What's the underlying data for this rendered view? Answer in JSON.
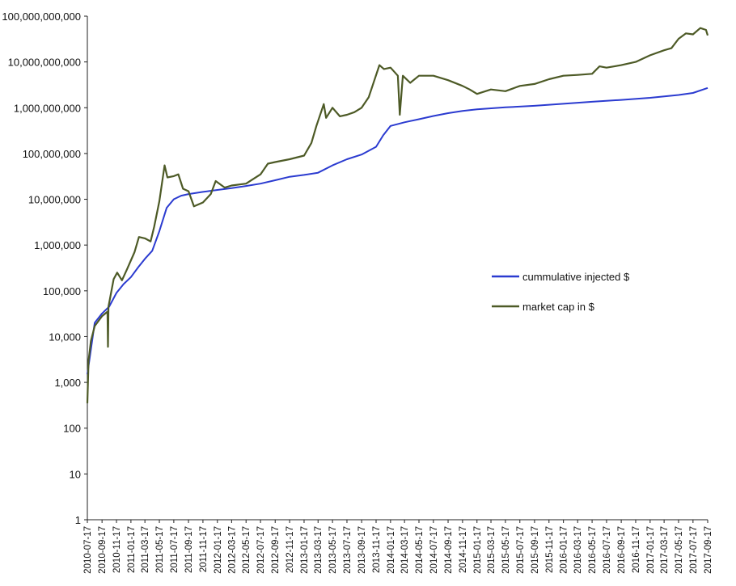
{
  "chart_data": {
    "type": "line",
    "title": "",
    "xlabel": "",
    "ylabel": "",
    "y_scale": "log",
    "ylim": [
      1,
      100000000000
    ],
    "xlim": [
      "2010-07-17",
      "2017-09-17"
    ],
    "grid": false,
    "legend_position": "right-middle",
    "y_tick_labels": [
      "1",
      "10",
      "100",
      "1,000",
      "10,000",
      "100,000",
      "1,000,000",
      "10,000,000",
      "100,000,000",
      "1,000,000,000",
      "10,000,000,000",
      "100,000,000,000"
    ],
    "x_tick_labels": [
      "2010-07-17",
      "2010-09-17",
      "2010-11-17",
      "2011-01-17",
      "2011-03-17",
      "2011-05-17",
      "2011-07-17",
      "2011-09-17",
      "2011-11-17",
      "2012-01-17",
      "2012-03-17",
      "2012-05-17",
      "2012-07-17",
      "2012-09-17",
      "2012-11-17",
      "2013-01-17",
      "2013-03-17",
      "2013-05-17",
      "2013-07-17",
      "2013-09-17",
      "2013-11-17",
      "2014-01-17",
      "2014-03-17",
      "2014-05-17",
      "2014-07-17",
      "2014-09-17",
      "2014-11-17",
      "2015-01-17",
      "2015-03-17",
      "2015-05-17",
      "2015-07-17",
      "2015-09-17",
      "2015-11-17",
      "2016-01-17",
      "2016-03-17",
      "2016-05-17",
      "2016-07-17",
      "2016-09-17",
      "2016-11-17",
      "2017-01-17",
      "2017-03-17",
      "2017-05-17",
      "2017-07-17",
      "2017-09-17"
    ],
    "series": [
      {
        "name": "cummulative injected $",
        "color": "#2b3bd0",
        "points": [
          [
            "2010-07-17",
            1500
          ],
          [
            "2010-08-17",
            20000
          ],
          [
            "2010-09-17",
            32000
          ],
          [
            "2010-10-17",
            45000
          ],
          [
            "2010-11-17",
            90000
          ],
          [
            "2010-12-17",
            140000
          ],
          [
            "2011-01-17",
            200000
          ],
          [
            "2011-02-17",
            330000
          ],
          [
            "2011-03-17",
            500000
          ],
          [
            "2011-04-17",
            750000
          ],
          [
            "2011-05-17",
            2000000
          ],
          [
            "2011-06-17",
            6500000
          ],
          [
            "2011-07-17",
            10000000
          ],
          [
            "2011-08-17",
            12000000
          ],
          [
            "2011-09-17",
            13000000
          ],
          [
            "2011-11-17",
            14500000
          ],
          [
            "2012-01-17",
            16000000
          ],
          [
            "2012-03-17",
            17500000
          ],
          [
            "2012-05-17",
            19500000
          ],
          [
            "2012-07-17",
            22000000
          ],
          [
            "2012-09-17",
            26000000
          ],
          [
            "2012-11-17",
            31000000
          ],
          [
            "2013-01-17",
            34000000
          ],
          [
            "2013-03-17",
            38000000
          ],
          [
            "2013-05-17",
            55000000
          ],
          [
            "2013-07-17",
            75000000
          ],
          [
            "2013-09-17",
            95000000
          ],
          [
            "2013-11-17",
            140000000
          ],
          [
            "2013-12-17",
            250000000
          ],
          [
            "2014-01-17",
            400000000
          ],
          [
            "2014-03-17",
            480000000
          ],
          [
            "2014-05-17",
            560000000
          ],
          [
            "2014-07-17",
            660000000
          ],
          [
            "2014-09-17",
            760000000
          ],
          [
            "2014-11-17",
            850000000
          ],
          [
            "2015-01-17",
            920000000
          ],
          [
            "2015-05-17",
            1020000000
          ],
          [
            "2015-09-17",
            1100000000
          ],
          [
            "2016-01-17",
            1220000000
          ],
          [
            "2016-05-17",
            1350000000
          ],
          [
            "2016-09-17",
            1480000000
          ],
          [
            "2017-01-17",
            1650000000
          ],
          [
            "2017-05-17",
            1900000000
          ],
          [
            "2017-07-17",
            2100000000
          ],
          [
            "2017-09-17",
            2700000000
          ]
        ]
      },
      {
        "name": "market cap in $",
        "color": "#4d5a26",
        "points": [
          [
            "2010-07-17",
            350
          ],
          [
            "2010-07-22",
            3000
          ],
          [
            "2010-08-01",
            8000
          ],
          [
            "2010-08-17",
            17000
          ],
          [
            "2010-09-17",
            28000
          ],
          [
            "2010-10-10",
            35000
          ],
          [
            "2010-10-12",
            6000
          ],
          [
            "2010-10-14",
            45000
          ],
          [
            "2010-11-05",
            180000
          ],
          [
            "2010-11-20",
            250000
          ],
          [
            "2010-12-10",
            170000
          ],
          [
            "2011-01-01",
            300000
          ],
          [
            "2011-02-01",
            700000
          ],
          [
            "2011-02-20",
            1500000
          ],
          [
            "2011-03-17",
            1400000
          ],
          [
            "2011-04-10",
            1200000
          ],
          [
            "2011-04-25",
            2500000
          ],
          [
            "2011-05-17",
            9000000
          ],
          [
            "2011-06-08",
            55000000
          ],
          [
            "2011-06-20",
            30000000
          ],
          [
            "2011-07-17",
            32000000
          ],
          [
            "2011-08-05",
            35000000
          ],
          [
            "2011-08-25",
            17000000
          ],
          [
            "2011-09-17",
            15000000
          ],
          [
            "2011-10-10",
            7000000
          ],
          [
            "2011-11-17",
            8500000
          ],
          [
            "2011-12-20",
            13000000
          ],
          [
            "2012-01-10",
            25000000
          ],
          [
            "2012-02-17",
            18000000
          ],
          [
            "2012-03-17",
            20000000
          ],
          [
            "2012-05-17",
            22000000
          ],
          [
            "2012-07-17",
            35000000
          ],
          [
            "2012-08-17",
            60000000
          ],
          [
            "2012-09-17",
            65000000
          ],
          [
            "2012-11-17",
            75000000
          ],
          [
            "2013-01-17",
            90000000
          ],
          [
            "2013-02-17",
            170000000
          ],
          [
            "2013-03-10",
            400000000
          ],
          [
            "2013-04-10",
            1200000000
          ],
          [
            "2013-04-20",
            600000000
          ],
          [
            "2013-05-17",
            1000000000
          ],
          [
            "2013-06-17",
            650000000
          ],
          [
            "2013-07-17",
            700000000
          ],
          [
            "2013-08-17",
            800000000
          ],
          [
            "2013-09-17",
            1000000000
          ],
          [
            "2013-10-17",
            1700000000
          ],
          [
            "2013-11-10",
            4000000000
          ],
          [
            "2013-12-01",
            8500000000
          ],
          [
            "2013-12-20",
            7000000000
          ],
          [
            "2014-01-17",
            7500000000
          ],
          [
            "2014-02-17",
            5000000000
          ],
          [
            "2014-02-25",
            700000000
          ],
          [
            "2014-03-10",
            5000000000
          ],
          [
            "2014-04-10",
            3500000000
          ],
          [
            "2014-05-17",
            5000000000
          ],
          [
            "2014-07-17",
            5000000000
          ],
          [
            "2014-09-17",
            4000000000
          ],
          [
            "2014-11-17",
            3000000000
          ],
          [
            "2014-12-17",
            2500000000
          ],
          [
            "2015-01-17",
            2000000000
          ],
          [
            "2015-03-17",
            2500000000
          ],
          [
            "2015-05-17",
            2300000000
          ],
          [
            "2015-07-17",
            3000000000
          ],
          [
            "2015-09-17",
            3300000000
          ],
          [
            "2015-11-17",
            4200000000
          ],
          [
            "2016-01-17",
            5000000000
          ],
          [
            "2016-03-17",
            5200000000
          ],
          [
            "2016-05-17",
            5500000000
          ],
          [
            "2016-06-17",
            8000000000
          ],
          [
            "2016-07-17",
            7500000000
          ],
          [
            "2016-09-17",
            8500000000
          ],
          [
            "2016-11-17",
            10000000000
          ],
          [
            "2017-01-17",
            14000000000
          ],
          [
            "2017-03-17",
            18000000000
          ],
          [
            "2017-04-17",
            20000000000
          ],
          [
            "2017-05-17",
            32000000000
          ],
          [
            "2017-06-17",
            42000000000
          ],
          [
            "2017-07-17",
            40000000000
          ],
          [
            "2017-08-17",
            55000000000
          ],
          [
            "2017-09-10",
            50000000000
          ],
          [
            "2017-09-17",
            38000000000
          ]
        ]
      }
    ],
    "legend": [
      "cummulative injected $",
      "market cap in $"
    ]
  }
}
